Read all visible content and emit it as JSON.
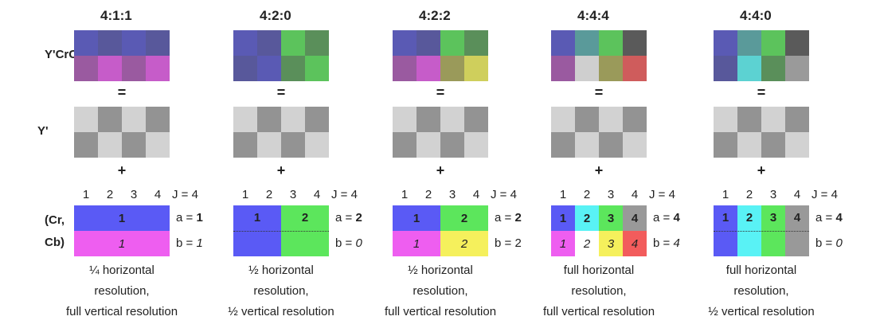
{
  "row_labels": {
    "ycrcb": "Y'CrCb",
    "y": "Y'",
    "crcb_1": "(Cr,",
    "crcb_2": "Cb)"
  },
  "operators": {
    "equals": "=",
    "plus": "+"
  },
  "colors": {
    "blue": "#5a5af5",
    "green": "#5ce65c",
    "magenta": "#ee5ef0",
    "yellow": "#f5f05c",
    "cyan": "#59f2f5",
    "red": "#f25c5c",
    "gray": "#999999",
    "luma_light": "#d2d2d2",
    "luma_dark": "#939393"
  },
  "schemes": [
    {
      "title": "4:1:1",
      "combined": [
        "#5a5ab4",
        "#58589b",
        "#5a5ab4",
        "#58589b",
        "#9a5aa0",
        "#c65cc9",
        "#9a5aa0",
        "#c65cc9"
      ],
      "luma": [
        "light",
        "dark",
        "light",
        "dark",
        "dark",
        "light",
        "dark",
        "light"
      ],
      "nums": [
        "1",
        "2",
        "3",
        "4"
      ],
      "j": "J = 4",
      "a_pre": "a = ",
      "a_val": "1",
      "b_pre": "b = ",
      "b_val": "1",
      "b_italic": true,
      "blocks": [
        {
          "row": 0,
          "col": 0,
          "span": 4,
          "color": "blue",
          "label": "1",
          "bold": true,
          "italic": false
        },
        {
          "row": 1,
          "col": 0,
          "span": 4,
          "color": "magenta",
          "label": "1",
          "bold": false,
          "italic": true
        }
      ],
      "dotted": false,
      "desc": [
        "¼ horizontal",
        "resolution,",
        "full vertical resolution"
      ]
    },
    {
      "title": "4:2:0",
      "combined": [
        "#5a5ab4",
        "#58589b",
        "#5cc35c",
        "#5a8f5a",
        "#58589b",
        "#5a5ab4",
        "#5a8f5a",
        "#5cc35c"
      ],
      "luma": [
        "light",
        "dark",
        "light",
        "dark",
        "dark",
        "light",
        "dark",
        "light"
      ],
      "nums": [
        "1",
        "2",
        "3",
        "4"
      ],
      "j": "J = 4",
      "a_pre": "a = ",
      "a_val": "2",
      "b_pre": "b = ",
      "b_val": "0",
      "b_italic": true,
      "blocks": [
        {
          "row": 0,
          "col": 0,
          "span": 2,
          "rows": 2,
          "color": "blue",
          "label": "1",
          "bold": true,
          "italic": false
        },
        {
          "row": 0,
          "col": 2,
          "span": 2,
          "rows": 2,
          "color": "green",
          "label": "2",
          "bold": true,
          "italic": false
        }
      ],
      "dotted": true,
      "desc": [
        "½ horizontal",
        "resolution,",
        "½ vertical resolution"
      ]
    },
    {
      "title": "4:2:2",
      "combined": [
        "#5a5ab4",
        "#58589b",
        "#5cc35c",
        "#5a8f5a",
        "#9a5aa0",
        "#c65cc9",
        "#9a9a5a",
        "#cfcf5c"
      ],
      "luma": [
        "light",
        "dark",
        "light",
        "dark",
        "dark",
        "light",
        "dark",
        "light"
      ],
      "nums": [
        "1",
        "2",
        "3",
        "4"
      ],
      "j": "J = 4",
      "a_pre": "a = ",
      "a_val": "2",
      "b_pre": "b = ",
      "b_val": "2",
      "b_italic": false,
      "blocks": [
        {
          "row": 0,
          "col": 0,
          "span": 2,
          "color": "blue",
          "label": "1",
          "bold": true,
          "italic": false
        },
        {
          "row": 0,
          "col": 2,
          "span": 2,
          "color": "green",
          "label": "2",
          "bold": true,
          "italic": false
        },
        {
          "row": 1,
          "col": 0,
          "span": 2,
          "color": "magenta",
          "label": "1",
          "bold": false,
          "italic": true
        },
        {
          "row": 1,
          "col": 2,
          "span": 2,
          "color": "yellow",
          "label": "2",
          "bold": false,
          "italic": true
        }
      ],
      "dotted": false,
      "desc": [
        "½ horizontal",
        "resolution,",
        "full vertical resolution"
      ]
    },
    {
      "title": "4:4:4",
      "combined": [
        "#5a5ab4",
        "#5a9a9a",
        "#5cc35c",
        "#5a5a5a",
        "#9a5aa0",
        "#cfcfcf",
        "#9a9a5a",
        "#cf5c5c"
      ],
      "luma": [
        "light",
        "dark",
        "light",
        "dark",
        "dark",
        "light",
        "dark",
        "light"
      ],
      "nums": [
        "1",
        "2",
        "3",
        "4"
      ],
      "j": "J = 4",
      "a_pre": "a = ",
      "a_val": "4",
      "b_pre": "b = ",
      "b_val": "4",
      "b_italic": true,
      "blocks": [
        {
          "row": 0,
          "col": 0,
          "span": 1,
          "color": "blue",
          "label": "1",
          "bold": true,
          "italic": false
        },
        {
          "row": 0,
          "col": 1,
          "span": 1,
          "color": "cyan",
          "label": "2",
          "bold": true,
          "italic": false
        },
        {
          "row": 0,
          "col": 2,
          "span": 1,
          "color": "green",
          "label": "3",
          "bold": true,
          "italic": false
        },
        {
          "row": 0,
          "col": 3,
          "span": 1,
          "color": "gray",
          "label": "4",
          "bold": true,
          "italic": false
        },
        {
          "row": 1,
          "col": 0,
          "span": 1,
          "color": "magenta",
          "label": "1",
          "bold": false,
          "italic": true
        },
        {
          "row": 1,
          "col": 1,
          "span": 1,
          "color": "white",
          "label": "2",
          "bold": false,
          "italic": true
        },
        {
          "row": 1,
          "col": 2,
          "span": 1,
          "color": "yellow",
          "label": "3",
          "bold": false,
          "italic": true
        },
        {
          "row": 1,
          "col": 3,
          "span": 1,
          "color": "red",
          "label": "4",
          "bold": false,
          "italic": true
        }
      ],
      "dotted": false,
      "desc": [
        "full horizontal",
        "resolution,",
        "full vertical resolution"
      ]
    },
    {
      "title": "4:4:0",
      "combined": [
        "#5a5ab4",
        "#5a9a9a",
        "#5cc35c",
        "#5a5a5a",
        "#58589b",
        "#5cd2d2",
        "#5a8f5a",
        "#9a9a9a"
      ],
      "luma": [
        "light",
        "dark",
        "light",
        "dark",
        "dark",
        "light",
        "dark",
        "light"
      ],
      "nums": [
        "1",
        "2",
        "3",
        "4"
      ],
      "j": "J = 4",
      "a_pre": "a = ",
      "a_val": "4",
      "b_pre": "b = ",
      "b_val": "0",
      "b_italic": true,
      "blocks": [
        {
          "row": 0,
          "col": 0,
          "span": 1,
          "rows": 2,
          "color": "blue",
          "label": "1",
          "bold": true,
          "italic": false
        },
        {
          "row": 0,
          "col": 1,
          "span": 1,
          "rows": 2,
          "color": "cyan",
          "label": "2",
          "bold": true,
          "italic": false
        },
        {
          "row": 0,
          "col": 2,
          "span": 1,
          "rows": 2,
          "color": "green",
          "label": "3",
          "bold": true,
          "italic": false
        },
        {
          "row": 0,
          "col": 3,
          "span": 1,
          "rows": 2,
          "color": "gray",
          "label": "4",
          "bold": true,
          "italic": false
        }
      ],
      "dotted": true,
      "desc": [
        "full horizontal",
        "resolution,",
        "½ vertical resolution"
      ]
    }
  ]
}
